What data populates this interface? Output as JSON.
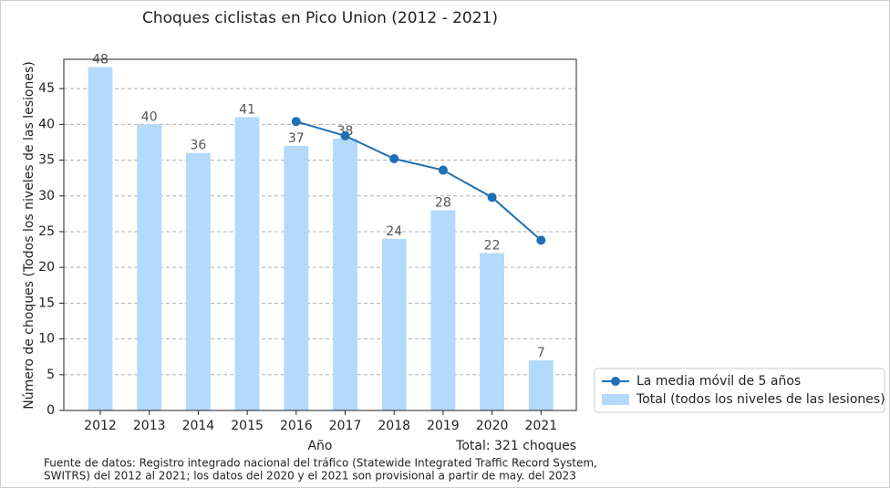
{
  "chart_data": {
    "type": "bar",
    "title": "Choques ciclistas en Pico Union (2012 - 2021)",
    "xlabel": "Año",
    "ylabel": "Número de choques (Todos los niveles de las lesiones)",
    "categories": [
      "2012",
      "2013",
      "2014",
      "2015",
      "2016",
      "2017",
      "2018",
      "2019",
      "2020",
      "2021"
    ],
    "series": [
      {
        "name": "Total (todos los niveles de las lesiones)",
        "type": "bar",
        "color": "#b3d9fb",
        "values": [
          48,
          40,
          36,
          41,
          37,
          38,
          24,
          28,
          22,
          7
        ]
      },
      {
        "name": "La media móvil de 5 años",
        "type": "line",
        "color": "#1f6fb4",
        "values": [
          null,
          null,
          null,
          null,
          40.4,
          38.4,
          35.2,
          33.6,
          29.8,
          23.8
        ]
      }
    ],
    "ylim": [
      0,
      49.1
    ],
    "yticks": [
      0,
      5,
      10,
      15,
      20,
      25,
      30,
      35,
      40,
      45
    ],
    "grid": true,
    "legend": "right",
    "annotations": [
      "Total: 321 choques"
    ],
    "footnote": [
      "Fuente de datos: Registro integrado nacional del tráfico (Statewide Integrated Traffic Record System,",
      "SWITRS) del 2012 al 2021; los datos del 2020 y el 2021 son provisional a partir de may. del 2023"
    ]
  }
}
